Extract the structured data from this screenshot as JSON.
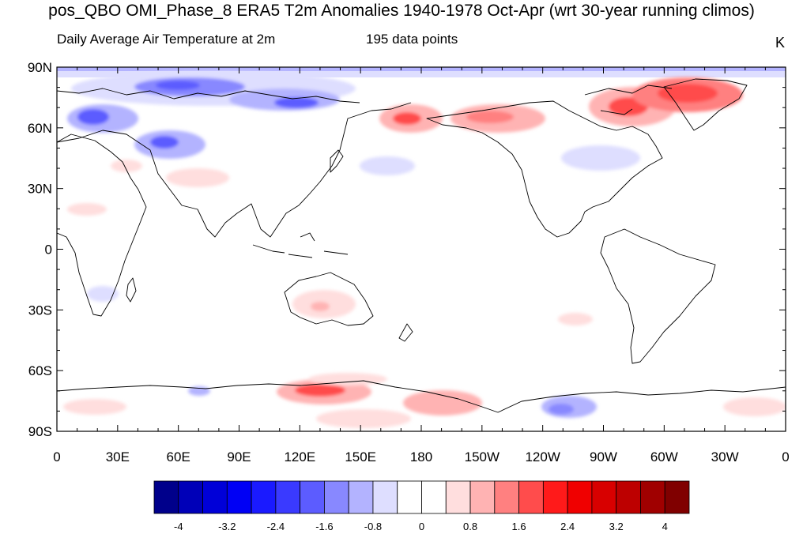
{
  "title": "pos_QBO OMI_Phase_8 ERA5 T2m Anomalies 1940-1978 Oct-Apr (wrt 30-year running climos)",
  "subtitle_left": "Daily Average Air Temperature at 2m",
  "subtitle_center": "195 data points",
  "subtitle_right": "K",
  "chart_data": {
    "type": "heatmap",
    "projection": "cylindrical-equidistant, centered on 180",
    "lon_range": [
      0,
      360
    ],
    "lat_range": [
      -90,
      90
    ],
    "lon_ticks": [
      "0",
      "30E",
      "60E",
      "90E",
      "120E",
      "150E",
      "180",
      "150W",
      "120W",
      "90W",
      "60W",
      "30W",
      "0"
    ],
    "lat_ticks": [
      "90N",
      "60N",
      "30N",
      "0",
      "30S",
      "60S",
      "90S"
    ],
    "colorbar": {
      "labels": [
        "-4",
        "-3.2",
        "-2.4",
        "-1.6",
        "-0.8",
        "0",
        "0.8",
        "1.6",
        "2.4",
        "3.2",
        "4"
      ],
      "colors": [
        "#00008b",
        "#0000b8",
        "#0000d8",
        "#0000f5",
        "#1a1aff",
        "#3a3aff",
        "#5c5cff",
        "#8888ff",
        "#b3b3ff",
        "#dedeff",
        "#ffffff",
        "#ffffff",
        "#ffdede",
        "#ffb3b3",
        "#ff8080",
        "#ff4c4c",
        "#ff1a1a",
        "#f00000",
        "#d80000",
        "#bd0000",
        "#a00000",
        "#800000"
      ]
    },
    "anomaly_features": [
      {
        "lon": 120,
        "lat": 86,
        "value": -1.2
      },
      {
        "lon": 90,
        "lat": 78,
        "value": -1.6
      },
      {
        "lon": 120,
        "lat": 73,
        "value": -2.0
      },
      {
        "lon": 20,
        "lat": 64,
        "value": -2.0
      },
      {
        "lon": 50,
        "lat": 52,
        "value": -2.0
      },
      {
        "lon": 135,
        "lat": 80,
        "value": -1.6
      },
      {
        "lon": 68,
        "lat": -72,
        "value": -0.8
      },
      {
        "lon": 268,
        "lat": -77,
        "value": -1.2
      },
      {
        "lon": 178,
        "lat": 62,
        "value": 2.4
      },
      {
        "lon": 218,
        "lat": 62,
        "value": 1.6
      },
      {
        "lon": 280,
        "lat": 68,
        "value": 2.0
      },
      {
        "lon": 320,
        "lat": 75,
        "value": 2.8
      },
      {
        "lon": 128,
        "lat": -69,
        "value": 2.4
      },
      {
        "lon": 200,
        "lat": -72,
        "value": 1.6
      },
      {
        "lon": 150,
        "lat": -82,
        "value": 1.2
      },
      {
        "lon": 135,
        "lat": -27,
        "value": 1.2
      },
      {
        "lon": 295,
        "lat": -45,
        "value": 0.8
      },
      {
        "lon": 340,
        "lat": -70,
        "value": 0.8
      }
    ]
  }
}
